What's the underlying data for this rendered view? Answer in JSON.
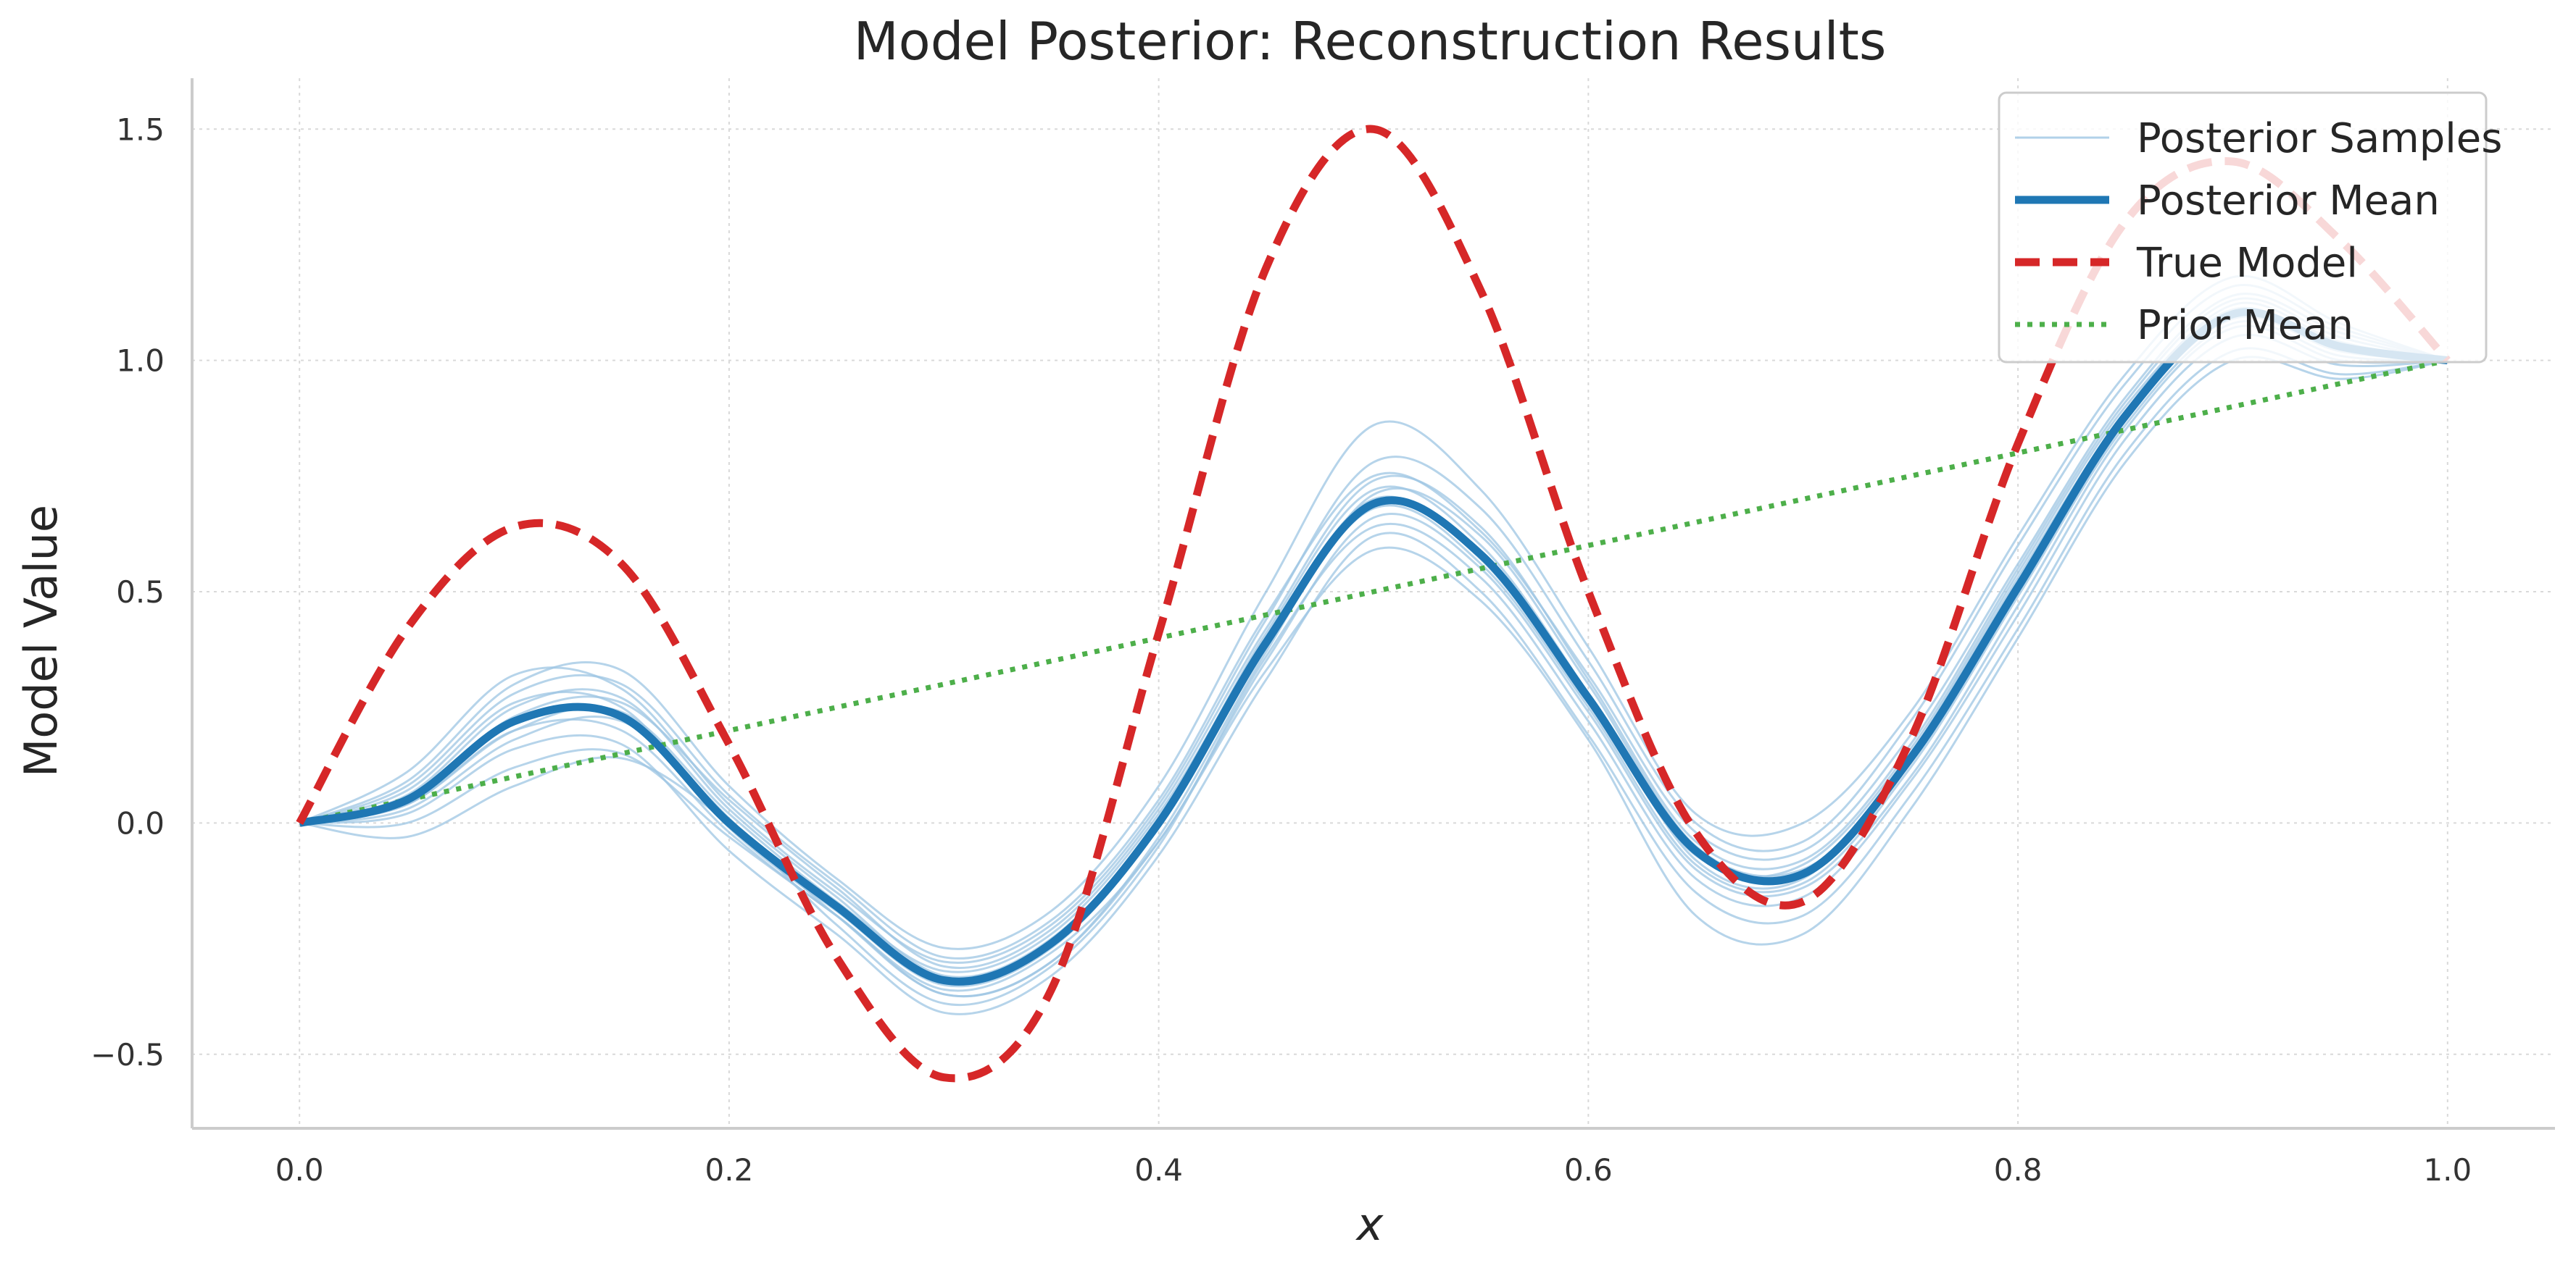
{
  "colors": {
    "samples": "#9ec6e3",
    "mean": "#1f77b4",
    "true_model": "#d62728",
    "prior": "#4daf4a",
    "grid": "#d9d9d9",
    "spine": "#cccccc"
  },
  "chart_data": {
    "type": "line",
    "title": "Model Posterior: Reconstruction Results",
    "xlabel": "x",
    "ylabel": "Model Value",
    "xlim": [
      -0.05,
      1.05
    ],
    "ylim": [
      -0.66,
      1.61
    ],
    "xticks": [
      0.0,
      0.2,
      0.4,
      0.6,
      0.8,
      1.0
    ],
    "xtick_labels": [
      "0.0",
      "0.2",
      "0.4",
      "0.6",
      "0.8",
      "1.0"
    ],
    "yticks": [
      -0.5,
      0.0,
      0.5,
      1.0,
      1.5
    ],
    "ytick_labels": [
      "−0.5",
      "0.0",
      "0.5",
      "1.0",
      "1.5"
    ],
    "grid": true,
    "legend_position": "top-right",
    "legend": [
      {
        "label": "Posterior Samples",
        "style": "thin-solid",
        "color_key": "samples"
      },
      {
        "label": "Posterior Mean",
        "style": "thick-solid",
        "color_key": "mean"
      },
      {
        "label": "True Model",
        "style": "dashed",
        "color_key": "true_model"
      },
      {
        "label": "Prior Mean",
        "style": "dotted",
        "color_key": "prior"
      }
    ],
    "x": [
      0.0,
      0.05,
      0.1,
      0.15,
      0.2,
      0.25,
      0.3,
      0.35,
      0.4,
      0.45,
      0.5,
      0.55,
      0.6,
      0.65,
      0.7,
      0.75,
      0.8,
      0.85,
      0.9,
      0.95,
      1.0
    ],
    "series": [
      {
        "name": "True Model",
        "color_key": "true_model",
        "style": "dashed",
        "values": [
          0.0,
          0.42,
          0.64,
          0.56,
          0.17,
          -0.29,
          -0.55,
          -0.36,
          0.41,
          1.2,
          1.5,
          1.15,
          0.5,
          -0.02,
          -0.17,
          0.18,
          0.82,
          1.3,
          1.43,
          1.26,
          1.0
        ]
      },
      {
        "name": "Posterior Mean",
        "color_key": "mean",
        "style": "thick-solid",
        "values": [
          0.0,
          0.05,
          0.22,
          0.23,
          0.0,
          -0.18,
          -0.34,
          -0.26,
          0.0,
          0.39,
          0.69,
          0.58,
          0.27,
          -0.06,
          -0.11,
          0.14,
          0.51,
          0.88,
          1.1,
          1.03,
          1.0
        ]
      },
      {
        "name": "Prior Mean",
        "color_key": "prior",
        "style": "dotted",
        "values": [
          0.0,
          0.05,
          0.1,
          0.15,
          0.2,
          0.25,
          0.3,
          0.35,
          0.4,
          0.45,
          0.5,
          0.55,
          0.6,
          0.65,
          0.7,
          0.75,
          0.8,
          0.85,
          0.9,
          0.95,
          1.0
        ]
      }
    ],
    "samples": [
      [
        0.0,
        0.04,
        0.2,
        0.2,
        -0.02,
        -0.2,
        -0.36,
        -0.28,
        -0.04,
        0.35,
        0.66,
        0.55,
        0.24,
        -0.1,
        -0.14,
        0.1,
        0.47,
        0.85,
        1.07,
        1.0,
        1.0
      ],
      [
        0.0,
        0.08,
        0.28,
        0.3,
        0.06,
        -0.13,
        -0.29,
        -0.21,
        0.05,
        0.45,
        0.75,
        0.63,
        0.32,
        -0.02,
        -0.06,
        0.19,
        0.56,
        0.92,
        1.14,
        1.06,
        1.0
      ],
      [
        0.0,
        0.02,
        0.16,
        0.17,
        -0.06,
        -0.24,
        -0.41,
        -0.33,
        -0.07,
        0.31,
        0.62,
        0.5,
        0.19,
        -0.15,
        -0.2,
        0.06,
        0.42,
        0.8,
        1.02,
        0.97,
        1.0
      ],
      [
        0.0,
        0.11,
        0.32,
        0.29,
        0.04,
        -0.15,
        -0.3,
        -0.22,
        0.04,
        0.44,
        0.78,
        0.68,
        0.35,
        0.0,
        -0.04,
        0.22,
        0.6,
        0.95,
        1.16,
        1.07,
        1.0
      ],
      [
        0.0,
        0.0,
        0.12,
        0.15,
        -0.03,
        -0.2,
        -0.37,
        -0.3,
        -0.03,
        0.37,
        0.71,
        0.62,
        0.3,
        -0.05,
        -0.1,
        0.13,
        0.5,
        0.87,
        1.09,
        1.02,
        1.0
      ],
      [
        0.0,
        0.06,
        0.25,
        0.27,
        0.03,
        -0.16,
        -0.33,
        -0.25,
        0.01,
        0.41,
        0.72,
        0.6,
        0.28,
        -0.08,
        -0.12,
        0.15,
        0.53,
        0.89,
        1.12,
        1.04,
        1.0
      ],
      [
        0.0,
        -0.03,
        0.08,
        0.14,
        0.0,
        -0.2,
        -0.37,
        -0.3,
        -0.04,
        0.33,
        0.59,
        0.48,
        0.18,
        -0.2,
        -0.24,
        0.03,
        0.4,
        0.78,
        1.0,
        0.96,
        1.0
      ],
      [
        0.0,
        0.09,
        0.3,
        0.33,
        0.08,
        -0.12,
        -0.27,
        -0.19,
        0.08,
        0.5,
        0.86,
        0.72,
        0.38,
        0.02,
        0.0,
        0.24,
        0.62,
        0.97,
        1.18,
        1.08,
        1.0
      ],
      [
        0.0,
        0.04,
        0.2,
        0.24,
        0.02,
        -0.17,
        -0.32,
        -0.24,
        0.02,
        0.4,
        0.7,
        0.57,
        0.26,
        -0.07,
        -0.09,
        0.16,
        0.54,
        0.9,
        1.11,
        1.03,
        1.0
      ],
      [
        0.0,
        0.07,
        0.26,
        0.25,
        -0.01,
        -0.19,
        -0.35,
        -0.27,
        -0.01,
        0.38,
        0.68,
        0.56,
        0.25,
        -0.09,
        -0.13,
        0.12,
        0.49,
        0.86,
        1.08,
        1.01,
        1.0
      ],
      [
        0.0,
        0.03,
        0.18,
        0.22,
        0.01,
        -0.22,
        -0.39,
        -0.31,
        -0.05,
        0.36,
        0.64,
        0.53,
        0.22,
        -0.12,
        -0.16,
        0.09,
        0.45,
        0.83,
        1.05,
        0.99,
        1.0
      ],
      [
        0.0,
        0.05,
        0.23,
        0.26,
        0.05,
        -0.14,
        -0.31,
        -0.23,
        0.03,
        0.42,
        0.74,
        0.64,
        0.31,
        -0.04,
        -0.08,
        0.17,
        0.55,
        0.91,
        1.13,
        1.05,
        1.0
      ]
    ]
  }
}
